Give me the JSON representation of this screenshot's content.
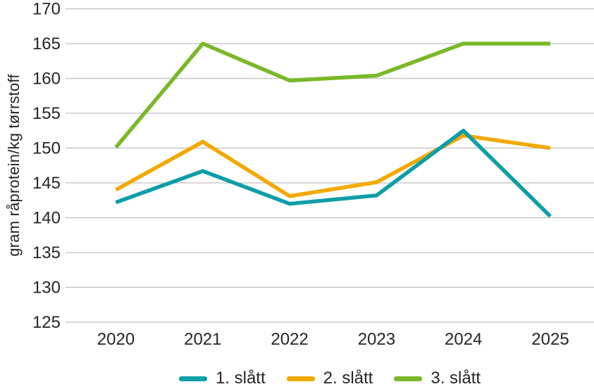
{
  "chart_data": {
    "type": "line",
    "title": "",
    "xlabel": "",
    "ylabel": "gram råprotein/kg tørrstoff",
    "x_categories": [
      "2020",
      "2021",
      "2022",
      "2023",
      "2024",
      "2025"
    ],
    "y_ticks": [
      125,
      130,
      135,
      140,
      145,
      150,
      155,
      160,
      165,
      170
    ],
    "ylim": [
      125,
      170
    ],
    "grid": "horizontal-only",
    "legend_position": "bottom-center",
    "series": [
      {
        "name": "1. slått",
        "color": "#0D9EA8",
        "values": [
          142.2,
          146.7,
          142.0,
          143.2,
          152.5,
          140.2
        ]
      },
      {
        "name": "2. slått",
        "color": "#F2A900",
        "values": [
          144.0,
          150.9,
          143.1,
          145.1,
          151.8,
          150.0
        ]
      },
      {
        "name": "3. slått",
        "color": "#7AB829",
        "values": [
          150.1,
          165.0,
          159.7,
          160.4,
          165.0,
          165.0
        ]
      }
    ]
  },
  "colors": {
    "gridline": "#BFBFBF",
    "text": "#262626"
  }
}
